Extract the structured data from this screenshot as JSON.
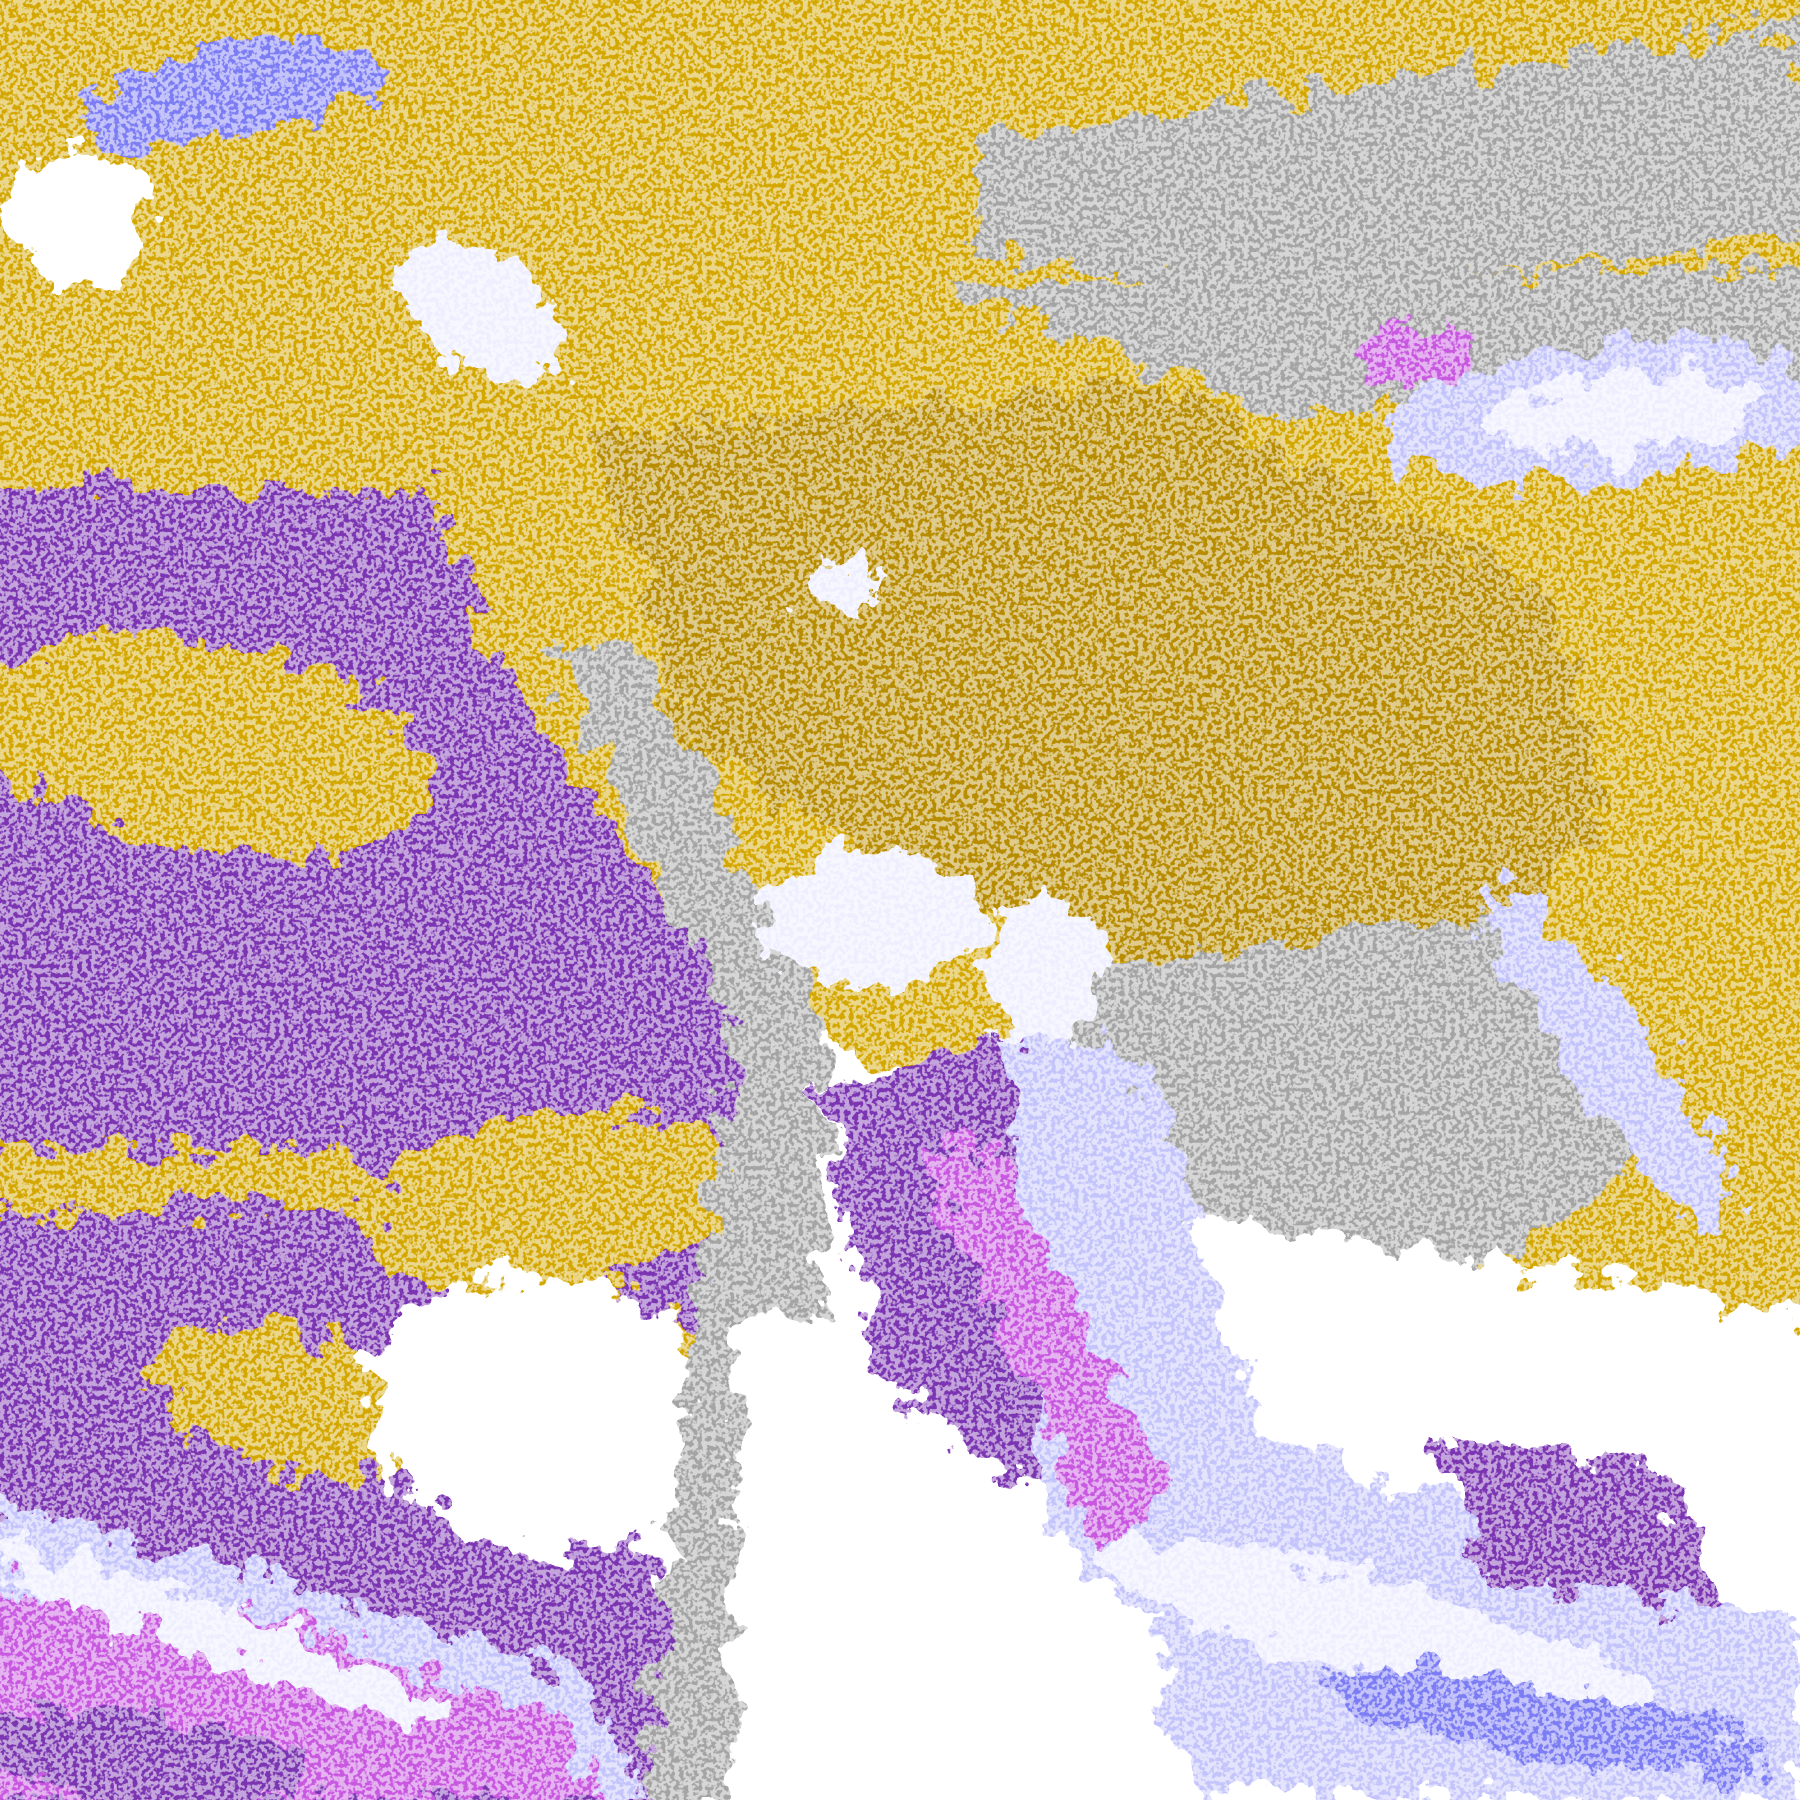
{
  "image": {
    "kind": "false-color satellite cloud classification",
    "palette": {
      "gold": "#d4a700",
      "dark_gold": "#b88c00",
      "purple": "#7c34b2",
      "magenta": "#c858e0",
      "blue": "#7c7cf4",
      "lavender": "#c4c4fc",
      "pale": "#eeeeff",
      "gray": "#a4a4a4",
      "white": "#ffffff"
    }
  }
}
